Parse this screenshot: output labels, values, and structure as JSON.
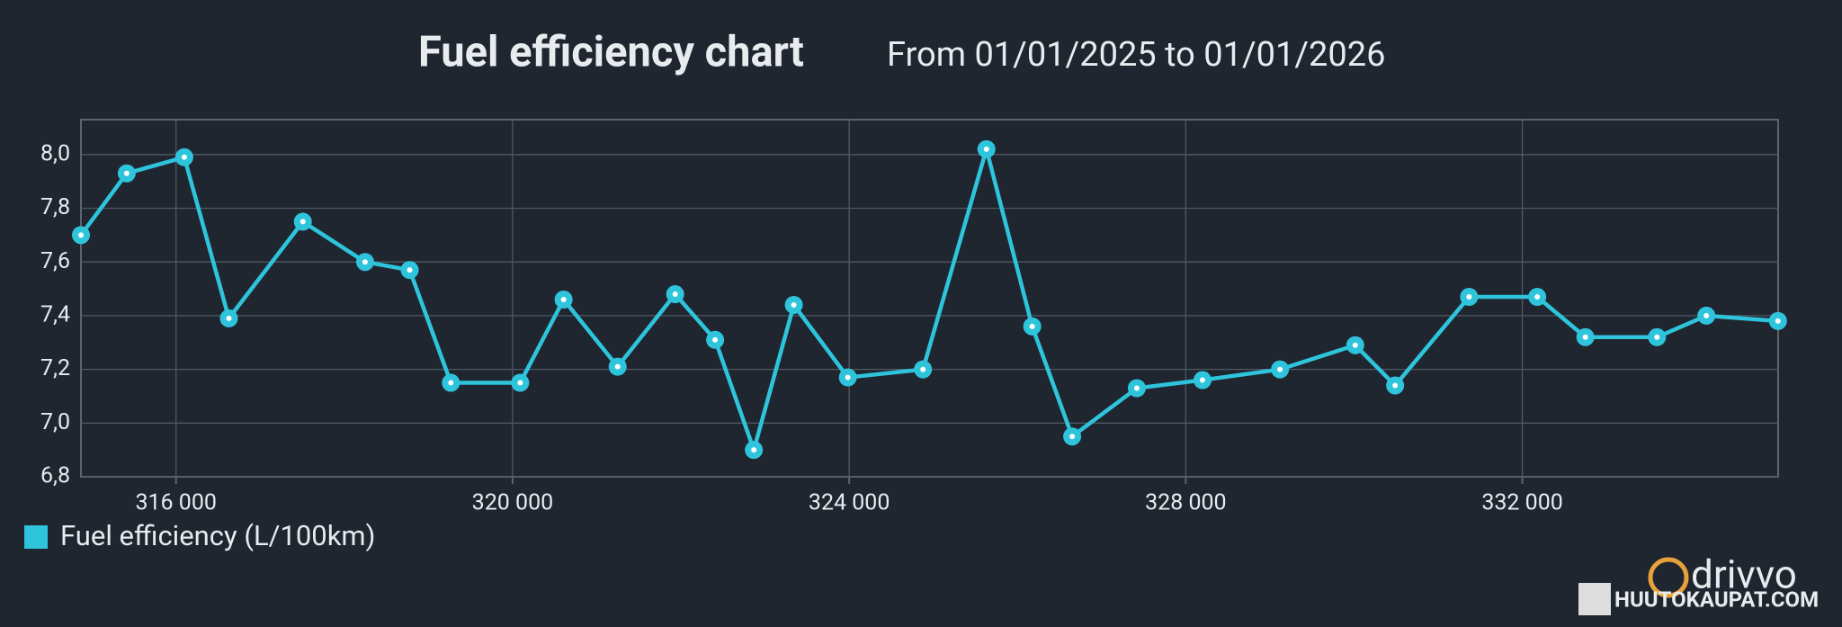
{
  "chart_data": {
    "type": "line",
    "title": "Fuel efficiency chart",
    "subtitle": "From 01/01/2025 to 01/01/2026",
    "grid": true,
    "legend": "bottom-left",
    "x": [
      314870,
      315414,
      316098,
      316628,
      317507,
      318247,
      318777,
      319266,
      320090,
      320606,
      321248,
      321932,
      322407,
      322867,
      323342,
      323984,
      324877,
      325631,
      326175,
      326650,
      327418,
      328199,
      329120,
      330014,
      330488,
      331367,
      332177,
      332749,
      333600,
      334187,
      335038
    ],
    "series": [
      {
        "name": "Fuel efficiency (L/100km)",
        "color": "#2ec4dc",
        "values": [
          7.7,
          7.93,
          7.99,
          7.39,
          7.75,
          7.6,
          7.57,
          7.15,
          7.15,
          7.46,
          7.21,
          7.48,
          7.31,
          6.9,
          7.44,
          7.17,
          7.2,
          8.02,
          7.36,
          6.95,
          7.13,
          7.16,
          7.2,
          7.29,
          7.14,
          7.47,
          7.47,
          7.32,
          7.32,
          7.4,
          7.38
        ]
      }
    ],
    "xlim": [
      314870,
      335040
    ],
    "xticks": [
      {
        "value": 316000,
        "label": "316 000"
      },
      {
        "value": 320000,
        "label": "320 000"
      },
      {
        "value": 324000,
        "label": "324 000"
      },
      {
        "value": 328000,
        "label": "328 000"
      },
      {
        "value": 332000,
        "label": "332 000"
      }
    ],
    "ylim": [
      6.8,
      8.13
    ],
    "yticks": [
      {
        "value": 6.8,
        "label": "6,8"
      },
      {
        "value": 7.0,
        "label": "7,0"
      },
      {
        "value": 7.2,
        "label": "7,2"
      },
      {
        "value": 7.4,
        "label": "7,4"
      },
      {
        "value": 7.6,
        "label": "7,6"
      },
      {
        "value": 7.8,
        "label": "7,8"
      },
      {
        "value": 8.0,
        "label": "8,0"
      }
    ]
  },
  "watermark": {
    "brand": "drivvo",
    "site": "HUUTOKAUPAT.COM"
  }
}
